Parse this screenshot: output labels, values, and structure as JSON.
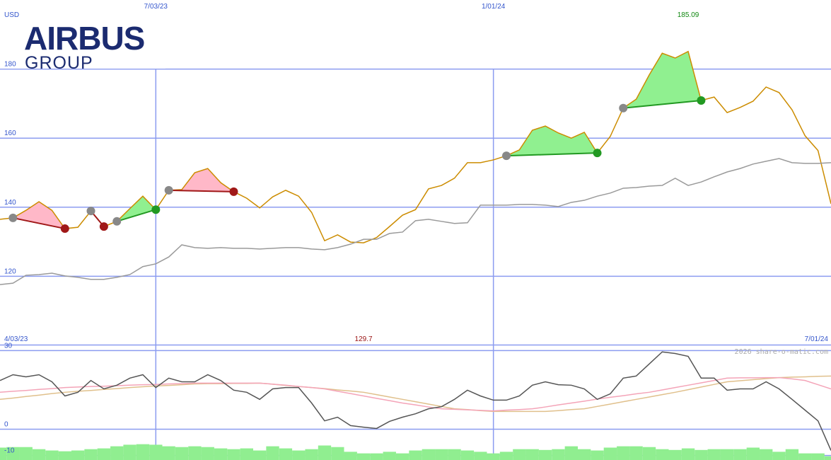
{
  "logo": {
    "line1": "AIRBUS",
    "line2": "GROUP"
  },
  "watermark": "2026 share-o-matic.com",
  "chart_data": [
    {
      "type": "line",
      "y_unit": "USD",
      "x": [
        0,
        5,
        10,
        15,
        20,
        25,
        30,
        35,
        40,
        45,
        50,
        55,
        60,
        65,
        70,
        75,
        80,
        85,
        90,
        95,
        100,
        105,
        110,
        115,
        120,
        125,
        130,
        135,
        140,
        145,
        150,
        155,
        160,
        165,
        170,
        175,
        180,
        185,
        190,
        195,
        200,
        205,
        210,
        215,
        220,
        225,
        230,
        235,
        240,
        245,
        250,
        255,
        260,
        265,
        270,
        275,
        280,
        285,
        290,
        295,
        300,
        305,
        310,
        315,
        320
      ],
      "xlim": [
        0,
        320
      ],
      "xticks": [
        {
          "value": 0,
          "label": "4/03/23"
        },
        {
          "value": 60,
          "label": "7/03/23"
        },
        {
          "value": 190,
          "label": "1/01/24"
        },
        {
          "value": 320,
          "label": "7/01/24"
        }
      ],
      "ylim": [
        100,
        200
      ],
      "yticks": [
        120,
        140,
        160,
        180
      ],
      "grid": true,
      "grid_color": "#8c9cf0",
      "series": [
        {
          "color": "#cc8c00",
          "values": [
            136.5,
            136.9,
            139.1,
            141.6,
            139.1,
            133.8,
            134.2,
            138.9,
            134.4,
            135.9,
            139.6,
            143.2,
            139.3,
            144.9,
            145.1,
            150.0,
            151.2,
            147.1,
            144.5,
            142.6,
            139.8,
            143.0,
            144.9,
            143.2,
            138.5,
            130.3,
            132.0,
            129.9,
            129.7,
            131.2,
            134.4,
            137.7,
            139.3,
            145.3,
            146.3,
            148.4,
            152.9,
            152.9,
            153.7,
            154.9,
            156.6,
            162.3,
            163.5,
            161.5,
            160.0,
            161.7,
            155.7,
            160.5,
            168.7,
            171.3,
            178.3,
            184.6,
            183.2,
            185.09,
            170.9,
            171.9,
            167.4,
            168.9,
            170.7,
            174.8,
            173.2,
            168.2,
            160.7,
            156.4,
            141.0
          ]
        },
        {
          "color": "#9a9a9a",
          "values": [
            117.6,
            118.0,
            120.3,
            120.5,
            120.9,
            120.1,
            119.7,
            119.1,
            119.1,
            119.7,
            120.5,
            122.8,
            123.6,
            125.6,
            129.1,
            128.3,
            128.1,
            128.3,
            128.1,
            128.1,
            127.9,
            128.1,
            128.3,
            128.3,
            127.9,
            127.7,
            128.3,
            129.3,
            130.7,
            130.7,
            132.4,
            132.8,
            136.1,
            136.5,
            135.9,
            135.3,
            135.5,
            140.6,
            140.6,
            140.6,
            140.8,
            140.8,
            140.6,
            140.2,
            141.4,
            142.0,
            143.2,
            144.1,
            145.5,
            145.7,
            146.1,
            146.3,
            148.4,
            146.3,
            147.3,
            148.8,
            150.2,
            151.2,
            152.5,
            153.3,
            154.1,
            152.9,
            152.7,
            152.7,
            152.9
          ]
        }
      ],
      "signals": [
        {
          "start": 5,
          "end": 25,
          "color": "#a01818",
          "fill": "#ffb8c8"
        },
        {
          "start": 35,
          "end": 40,
          "color": "#a01818",
          "fill": "#ffb8c8"
        },
        {
          "start": 45,
          "end": 60,
          "color": "#229922",
          "fill": "#90f090"
        },
        {
          "start": 65,
          "end": 90,
          "color": "#a01818",
          "fill": "#ffb8c8"
        },
        {
          "start": 195,
          "end": 230,
          "color": "#229922",
          "fill": "#90f090"
        },
        {
          "start": 240,
          "end": 270,
          "color": "#229922",
          "fill": "#90f090"
        }
      ],
      "signal_start_color": "#888888",
      "max": {
        "x": 265,
        "value": 185.09,
        "color": "#118811"
      },
      "min": {
        "x": 140,
        "value": 129.7,
        "color": "#991111"
      }
    },
    {
      "type": "line",
      "x": [
        0,
        5,
        10,
        15,
        20,
        25,
        30,
        35,
        40,
        45,
        50,
        55,
        60,
        65,
        70,
        75,
        80,
        85,
        90,
        95,
        100,
        105,
        110,
        115,
        120,
        125,
        130,
        135,
        140,
        145,
        150,
        155,
        160,
        165,
        170,
        175,
        180,
        185,
        190,
        195,
        200,
        205,
        210,
        215,
        220,
        225,
        230,
        235,
        240,
        245,
        250,
        255,
        260,
        265,
        270,
        275,
        280,
        285,
        290,
        295,
        300,
        305,
        310,
        315,
        320
      ],
      "xlim": [
        0,
        320
      ],
      "ylim": [
        -12,
        32
      ],
      "yticks": [
        30,
        0,
        -10
      ],
      "grid": true,
      "grid_color": "#8c9cf0",
      "series": [
        {
          "type": "bar",
          "color": "#90ee90",
          "values": [
            -7.0,
            -6.8,
            -6.8,
            -7.6,
            -8.1,
            -8.4,
            -8.1,
            -7.6,
            -7.3,
            -6.5,
            -5.9,
            -5.7,
            -5.9,
            -6.5,
            -6.8,
            -6.5,
            -6.8,
            -7.3,
            -7.6,
            -7.3,
            -8.1,
            -6.5,
            -7.3,
            -8.1,
            -7.6,
            -6.2,
            -6.8,
            -8.6,
            -9.2,
            -9.2,
            -8.6,
            -9.2,
            -8.1,
            -7.6,
            -7.6,
            -7.6,
            -8.1,
            -8.6,
            -9.2,
            -8.6,
            -7.6,
            -7.6,
            -7.9,
            -7.6,
            -6.5,
            -7.6,
            -8.1,
            -7.0,
            -6.5,
            -6.5,
            -6.8,
            -7.6,
            -7.9,
            -7.3,
            -7.9,
            -7.6,
            -7.6,
            -7.6,
            -7.0,
            -7.6,
            -8.6,
            -7.6,
            -9.2,
            -9.2,
            -10.3
          ]
        },
        {
          "color": "#e0c08c",
          "values": [
            11.4,
            11.9,
            12.5,
            13,
            13.6,
            14.1,
            14.5,
            14.8,
            15.2,
            15.5,
            15.9,
            16.2,
            16.5,
            16.7,
            17,
            17.3,
            17.4,
            17.4,
            17.5,
            17.5,
            17.6,
            17.2,
            16.7,
            16.3,
            15.9,
            15.5,
            15,
            14.6,
            14.1,
            13.2,
            12.3,
            11.4,
            10.5,
            9.6,
            8.7,
            7.8,
            7.5,
            7.1,
            6.8,
            6.8,
            6.8,
            6.8,
            6.8,
            7.1,
            7.5,
            7.8,
            8.7,
            9.6,
            10.5,
            11.4,
            12.3,
            13.2,
            14.1,
            15.1,
            16.1,
            17.1,
            18.1,
            18.5,
            18.9,
            19.3,
            19.7,
            19.9,
            20,
            20.2,
            20.3
          ]
        },
        {
          "color": "#f4a4b8",
          "values": [
            14.1,
            14.5,
            14.8,
            15.2,
            15.5,
            15.9,
            16.1,
            16.3,
            16.4,
            16.6,
            16.8,
            17,
            17.1,
            17.3,
            17.4,
            17.6,
            17.6,
            17.6,
            17.6,
            17.6,
            17.6,
            17.2,
            16.8,
            16.3,
            15.9,
            15.4,
            14.5,
            13.6,
            12.7,
            11.8,
            10.9,
            10,
            9.3,
            8.5,
            7.8,
            7.6,
            7.4,
            7.2,
            7,
            7.3,
            7.5,
            7.8,
            8.5,
            9.3,
            10,
            10.7,
            11.5,
            12.2,
            12.8,
            13.5,
            14.1,
            15,
            15.9,
            16.8,
            17.7,
            18.6,
            19.5,
            19.6,
            19.6,
            19.7,
            19.7,
            19.2,
            18.6,
            17,
            15.4
          ]
        },
        {
          "color": "#555555",
          "values": [
            18.6,
            20.8,
            20,
            20.8,
            18.1,
            12.7,
            14.1,
            18.6,
            15.4,
            16.8,
            19.5,
            20.8,
            15.9,
            19.5,
            18.1,
            18.1,
            20.8,
            18.6,
            14.9,
            14.1,
            11.4,
            15.4,
            15.9,
            15.9,
            10,
            3.2,
            4.6,
            1.4,
            0.8,
            0.3,
            3,
            4.6,
            5.9,
            7.8,
            8.6,
            11.4,
            14.9,
            12.7,
            11.1,
            11.1,
            12.7,
            16.8,
            18.1,
            17,
            16.8,
            15.4,
            11.4,
            13.5,
            19.5,
            20.3,
            24.9,
            29.5,
            28.9,
            27.8,
            19.5,
            19.5,
            14.9,
            15.4,
            15.4,
            18.1,
            15.4,
            11.4,
            7.3,
            3.2,
            -8.1
          ]
        }
      ]
    }
  ]
}
